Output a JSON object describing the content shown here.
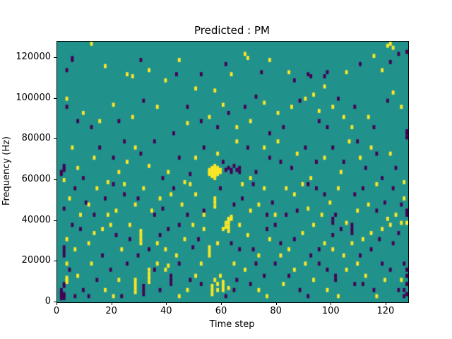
{
  "figure": {
    "background": "#ffffff"
  },
  "chart_data": {
    "type": "heatmap",
    "title": "Predicted : PM",
    "xlabel": "Time step",
    "ylabel": "Frequency (Hz)",
    "x_range": [
      0,
      128
    ],
    "y_range": [
      0,
      128000
    ],
    "x_ticks": [
      0,
      20,
      40,
      60,
      80,
      100,
      120
    ],
    "y_ticks": [
      0,
      20000,
      40000,
      60000,
      80000,
      100000,
      120000
    ],
    "grid": false,
    "legend": "none",
    "colormap": "viridis",
    "colors": {
      "mid": "#21918c",
      "high": "#fde725",
      "low": "#440154"
    },
    "cell": {
      "width_steps": 1,
      "height_hz": 2000
    },
    "high_cells": [
      [
        12,
        126
      ],
      [
        17,
        115
      ],
      [
        25,
        111
      ],
      [
        27,
        110
      ],
      [
        33,
        113
      ],
      [
        39,
        108
      ],
      [
        44,
        118
      ],
      [
        50,
        104
      ],
      [
        57,
        103
      ],
      [
        63,
        111
      ],
      [
        68,
        121
      ],
      [
        69,
        119
      ],
      [
        77,
        118
      ],
      [
        84,
        112
      ],
      [
        93,
        101
      ],
      [
        97,
        105
      ],
      [
        105,
        112
      ],
      [
        115,
        120
      ],
      [
        118,
        113
      ],
      [
        120,
        125
      ],
      [
        121,
        126
      ],
      [
        122,
        124
      ],
      [
        3,
        99
      ],
      [
        9,
        92
      ],
      [
        15,
        88
      ],
      [
        20,
        96
      ],
      [
        27,
        90
      ],
      [
        36,
        95
      ],
      [
        47,
        87
      ],
      [
        55,
        90
      ],
      [
        60,
        96
      ],
      [
        65,
        85
      ],
      [
        70,
        88
      ],
      [
        75,
        97
      ],
      [
        80,
        92
      ],
      [
        85,
        95
      ],
      [
        90,
        99
      ],
      [
        95,
        93
      ],
      [
        100,
        95
      ],
      [
        104,
        90
      ],
      [
        107,
        85
      ],
      [
        113,
        90
      ],
      [
        122,
        102
      ],
      [
        125,
        95
      ],
      [
        2,
        59
      ],
      [
        5,
        75
      ],
      [
        7,
        65
      ],
      [
        13,
        70
      ],
      [
        18,
        58
      ],
      [
        22,
        63
      ],
      [
        25,
        68
      ],
      [
        28,
        75
      ],
      [
        33,
        66
      ],
      [
        40,
        63
      ],
      [
        46,
        58
      ],
      [
        50,
        70
      ],
      [
        58,
        72
      ],
      [
        65,
        78
      ],
      [
        70,
        60
      ],
      [
        75,
        75
      ],
      [
        80,
        78
      ],
      [
        87,
        72
      ],
      [
        92,
        60
      ],
      [
        97,
        70
      ],
      [
        103,
        63
      ],
      [
        106,
        78
      ],
      [
        110,
        70
      ],
      [
        114,
        75
      ],
      [
        121,
        72
      ],
      [
        126,
        58
      ],
      [
        55,
        62
      ],
      [
        55,
        63
      ],
      [
        55,
        64
      ],
      [
        56,
        61
      ],
      [
        56,
        62
      ],
      [
        56,
        63
      ],
      [
        56,
        64
      ],
      [
        56,
        65
      ],
      [
        57,
        60
      ],
      [
        57,
        61
      ],
      [
        57,
        62
      ],
      [
        57,
        63
      ],
      [
        57,
        64
      ],
      [
        57,
        65
      ],
      [
        57,
        66
      ],
      [
        58,
        62
      ],
      [
        58,
        63
      ],
      [
        58,
        64
      ],
      [
        58,
        65
      ],
      [
        59,
        63
      ],
      [
        59,
        64
      ],
      [
        4,
        50
      ],
      [
        8,
        42
      ],
      [
        11,
        47
      ],
      [
        14,
        55
      ],
      [
        18,
        42
      ],
      [
        21,
        44
      ],
      [
        24,
        57
      ],
      [
        28,
        47
      ],
      [
        31,
        55
      ],
      [
        34,
        44
      ],
      [
        37,
        50
      ],
      [
        41,
        52
      ],
      [
        45,
        47
      ],
      [
        48,
        57
      ],
      [
        50,
        52
      ],
      [
        53,
        42
      ],
      [
        57,
        46
      ],
      [
        57,
        48
      ],
      [
        57,
        50
      ],
      [
        62,
        38
      ],
      [
        62,
        39
      ],
      [
        62,
        40
      ],
      [
        63,
        40
      ],
      [
        63,
        41
      ],
      [
        67,
        57
      ],
      [
        70,
        44
      ],
      [
        73,
        47
      ],
      [
        75,
        55
      ],
      [
        79,
        42
      ],
      [
        83,
        55
      ],
      [
        86,
        52
      ],
      [
        89,
        57
      ],
      [
        91,
        45
      ],
      [
        96,
        42
      ],
      [
        99,
        48
      ],
      [
        102,
        55
      ],
      [
        105,
        38
      ],
      [
        109,
        44
      ],
      [
        113,
        47
      ],
      [
        116,
        57
      ],
      [
        120,
        40
      ],
      [
        123,
        42
      ],
      [
        126,
        50
      ],
      [
        3,
        30
      ],
      [
        6,
        25
      ],
      [
        11,
        28
      ],
      [
        13,
        33
      ],
      [
        16,
        35
      ],
      [
        19,
        37
      ],
      [
        23,
        25
      ],
      [
        26,
        37
      ],
      [
        30,
        28
      ],
      [
        30,
        30
      ],
      [
        30,
        32
      ],
      [
        30,
        34
      ],
      [
        36,
        28
      ],
      [
        39,
        25
      ],
      [
        43,
        22
      ],
      [
        46,
        30
      ],
      [
        49,
        37
      ],
      [
        53,
        35
      ],
      [
        55,
        22
      ],
      [
        55,
        24
      ],
      [
        55,
        26
      ],
      [
        58,
        28
      ],
      [
        60,
        35
      ],
      [
        61,
        36
      ],
      [
        61,
        38
      ],
      [
        62,
        34
      ],
      [
        62,
        36
      ],
      [
        66,
        37
      ],
      [
        69,
        32
      ],
      [
        73,
        22
      ],
      [
        77,
        30
      ],
      [
        81,
        22
      ],
      [
        84,
        25
      ],
      [
        89,
        33
      ],
      [
        93,
        37
      ],
      [
        97,
        28
      ],
      [
        100,
        25
      ],
      [
        104,
        22
      ],
      [
        107,
        28
      ],
      [
        111,
        30
      ],
      [
        114,
        33
      ],
      [
        118,
        35
      ],
      [
        121,
        37
      ],
      [
        125,
        38
      ],
      [
        127,
        38
      ],
      [
        3,
        9
      ],
      [
        3,
        10
      ],
      [
        3,
        11
      ],
      [
        3,
        18
      ],
      [
        7,
        12
      ],
      [
        12,
        18
      ],
      [
        17,
        5
      ],
      [
        20,
        2
      ],
      [
        22,
        10
      ],
      [
        28,
        4
      ],
      [
        28,
        6
      ],
      [
        28,
        8
      ],
      [
        28,
        10
      ],
      [
        33,
        9
      ],
      [
        33,
        11
      ],
      [
        33,
        13
      ],
      [
        33,
        15
      ],
      [
        36,
        18
      ],
      [
        39,
        15
      ],
      [
        40,
        17
      ],
      [
        44,
        2
      ],
      [
        47,
        5
      ],
      [
        50,
        12
      ],
      [
        52,
        18
      ],
      [
        56,
        3
      ],
      [
        56,
        5
      ],
      [
        56,
        7
      ],
      [
        57,
        10
      ],
      [
        58,
        5
      ],
      [
        58,
        8
      ],
      [
        59,
        12
      ],
      [
        60,
        5
      ],
      [
        60,
        7
      ],
      [
        60,
        9
      ],
      [
        62,
        6
      ],
      [
        64,
        18
      ],
      [
        68,
        15
      ],
      [
        73,
        5
      ],
      [
        76,
        2
      ],
      [
        82,
        8
      ],
      [
        86,
        15
      ],
      [
        90,
        18
      ],
      [
        93,
        10
      ],
      [
        98,
        5
      ],
      [
        102,
        2
      ],
      [
        105,
        15
      ],
      [
        109,
        18
      ],
      [
        112,
        12
      ],
      [
        116,
        2
      ],
      [
        119,
        10
      ],
      [
        125,
        10
      ]
    ],
    "low_cells": [
      [
        3,
        113
      ],
      [
        5,
        118
      ],
      [
        5,
        119
      ],
      [
        30,
        118
      ],
      [
        43,
        111
      ],
      [
        52,
        111
      ],
      [
        61,
        116
      ],
      [
        74,
        112
      ],
      [
        86,
        108
      ],
      [
        91,
        111
      ],
      [
        92,
        110
      ],
      [
        97,
        110
      ],
      [
        98,
        112
      ],
      [
        110,
        116
      ],
      [
        121,
        117
      ],
      [
        124,
        121
      ],
      [
        127,
        122
      ],
      [
        3,
        95
      ],
      [
        7,
        88
      ],
      [
        12,
        85
      ],
      [
        22,
        88
      ],
      [
        31,
        98
      ],
      [
        42,
        82
      ],
      [
        47,
        95
      ],
      [
        52,
        88
      ],
      [
        58,
        85
      ],
      [
        62,
        92
      ],
      [
        68,
        95
      ],
      [
        72,
        100
      ],
      [
        77,
        82
      ],
      [
        82,
        85
      ],
      [
        88,
        98
      ],
      [
        95,
        88
      ],
      [
        98,
        85
      ],
      [
        102,
        99
      ],
      [
        108,
        95
      ],
      [
        115,
        85
      ],
      [
        120,
        98
      ],
      [
        127,
        80
      ],
      [
        127,
        82
      ],
      [
        127,
        83
      ],
      [
        1,
        62
      ],
      [
        1,
        63
      ],
      [
        2,
        64
      ],
      [
        2,
        65
      ],
      [
        2,
        66
      ],
      [
        9,
        60
      ],
      [
        15,
        75
      ],
      [
        20,
        70
      ],
      [
        24,
        78
      ],
      [
        30,
        72
      ],
      [
        35,
        78
      ],
      [
        38,
        60
      ],
      [
        44,
        70
      ],
      [
        48,
        62
      ],
      [
        53,
        75
      ],
      [
        60,
        68
      ],
      [
        61,
        64
      ],
      [
        62,
        65
      ],
      [
        63,
        63
      ],
      [
        63,
        64
      ],
      [
        64,
        66
      ],
      [
        65,
        64
      ],
      [
        66,
        63
      ],
      [
        66,
        65
      ],
      [
        69,
        75
      ],
      [
        72,
        63
      ],
      [
        77,
        70
      ],
      [
        81,
        68
      ],
      [
        85,
        65
      ],
      [
        90,
        75
      ],
      [
        94,
        68
      ],
      [
        100,
        75
      ],
      [
        104,
        68
      ],
      [
        109,
        78
      ],
      [
        112,
        65
      ],
      [
        116,
        72
      ],
      [
        118,
        60
      ],
      [
        123,
        65
      ],
      [
        2,
        45
      ],
      [
        6,
        55
      ],
      [
        10,
        48
      ],
      [
        13,
        42
      ],
      [
        17,
        50
      ],
      [
        20,
        57
      ],
      [
        24,
        52
      ],
      [
        29,
        50
      ],
      [
        35,
        42
      ],
      [
        38,
        45
      ],
      [
        42,
        55
      ],
      [
        47,
        42
      ],
      [
        53,
        44
      ],
      [
        59,
        55
      ],
      [
        64,
        47
      ],
      [
        67,
        50
      ],
      [
        71,
        57
      ],
      [
        76,
        42
      ],
      [
        78,
        48
      ],
      [
        83,
        42
      ],
      [
        87,
        44
      ],
      [
        91,
        57
      ],
      [
        94,
        55
      ],
      [
        97,
        52
      ],
      [
        100,
        38
      ],
      [
        100,
        40
      ],
      [
        101,
        42
      ],
      [
        108,
        52
      ],
      [
        111,
        55
      ],
      [
        116,
        44
      ],
      [
        119,
        48
      ],
      [
        122,
        55
      ],
      [
        125,
        47
      ],
      [
        127,
        42
      ],
      [
        127,
        44
      ],
      [
        2,
        22
      ],
      [
        2,
        24
      ],
      [
        2,
        26
      ],
      [
        5,
        37
      ],
      [
        8,
        35
      ],
      [
        16,
        22
      ],
      [
        21,
        32
      ],
      [
        26,
        30
      ],
      [
        29,
        22
      ],
      [
        33,
        25
      ],
      [
        37,
        32
      ],
      [
        40,
        35
      ],
      [
        44,
        37
      ],
      [
        49,
        26
      ],
      [
        51,
        30
      ],
      [
        63,
        28
      ],
      [
        66,
        25
      ],
      [
        71,
        25
      ],
      [
        76,
        35
      ],
      [
        79,
        37
      ],
      [
        81,
        28
      ],
      [
        86,
        30
      ],
      [
        92,
        22
      ],
      [
        95,
        25
      ],
      [
        100,
        32
      ],
      [
        103,
        35
      ],
      [
        107,
        33
      ],
      [
        107,
        35
      ],
      [
        107,
        37
      ],
      [
        110,
        22
      ],
      [
        114,
        25
      ],
      [
        117,
        30
      ],
      [
        122,
        28
      ],
      [
        124,
        33
      ],
      [
        1,
        1
      ],
      [
        1,
        2
      ],
      [
        1,
        3
      ],
      [
        1,
        4
      ],
      [
        1,
        5
      ],
      [
        2,
        1
      ],
      [
        2,
        2
      ],
      [
        2,
        3
      ],
      [
        2,
        7
      ],
      [
        2,
        8
      ],
      [
        4,
        15
      ],
      [
        6,
        2
      ],
      [
        9,
        5
      ],
      [
        11,
        2
      ],
      [
        14,
        10
      ],
      [
        19,
        15
      ],
      [
        23,
        2
      ],
      [
        25,
        18
      ],
      [
        31,
        3
      ],
      [
        31,
        5
      ],
      [
        31,
        7
      ],
      [
        35,
        15
      ],
      [
        37,
        5
      ],
      [
        41,
        8
      ],
      [
        41,
        10
      ],
      [
        41,
        12
      ],
      [
        44,
        18
      ],
      [
        48,
        10
      ],
      [
        52,
        8
      ],
      [
        61,
        2
      ],
      [
        64,
        5
      ],
      [
        65,
        10
      ],
      [
        70,
        8
      ],
      [
        72,
        18
      ],
      [
        75,
        12
      ],
      [
        79,
        18
      ],
      [
        84,
        12
      ],
      [
        88,
        5
      ],
      [
        91,
        2
      ],
      [
        95,
        18
      ],
      [
        98,
        15
      ],
      [
        101,
        10
      ],
      [
        101,
        12
      ],
      [
        108,
        8
      ],
      [
        111,
        8
      ],
      [
        115,
        5
      ],
      [
        118,
        18
      ],
      [
        121,
        15
      ],
      [
        124,
        5
      ],
      [
        126,
        2
      ],
      [
        126,
        5
      ],
      [
        126,
        18
      ],
      [
        127,
        3
      ],
      [
        127,
        8
      ],
      [
        127,
        12
      ],
      [
        127,
        15
      ]
    ]
  }
}
